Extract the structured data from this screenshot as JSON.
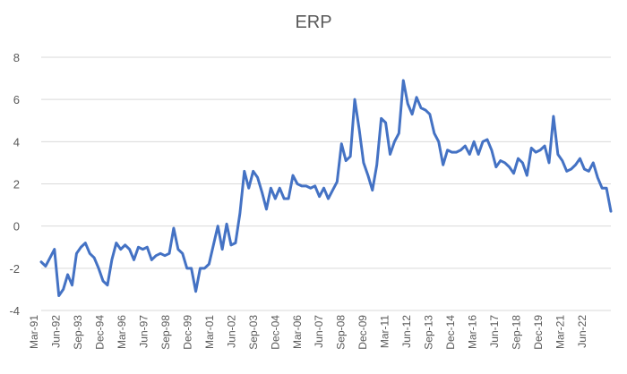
{
  "chart_data": {
    "type": "line",
    "title": "ERP",
    "xlabel": "",
    "ylabel": "",
    "ylim": [
      -4,
      8
    ],
    "yticks": [
      -4,
      -2,
      0,
      2,
      4,
      6,
      8
    ],
    "grid": true,
    "legend": "none",
    "line_color": "#4472C4",
    "grid_color": "#D9D9D9",
    "x_tick_labels": [
      "Mar-91",
      "Jun-92",
      "Sep-93",
      "Dec-94",
      "Mar-96",
      "Jun-97",
      "Sep-98",
      "Dec-99",
      "Mar-01",
      "Jun-02",
      "Sep-03",
      "Dec-04",
      "Mar-06",
      "Jun-07",
      "Sep-08",
      "Dec-09",
      "Mar-11",
      "Jun-12",
      "Sep-13",
      "Dec-14",
      "Mar-16",
      "Jun-17",
      "Sep-18",
      "Dec-19",
      "Mar-21",
      "Jun-22"
    ],
    "x_start": "Mar-91",
    "x_end": "Dec-22",
    "series": [
      {
        "values": [
          -1.7,
          -1.9,
          -1.5,
          -1.1,
          -3.3,
          -3.0,
          -2.3,
          -2.8,
          -1.3,
          -1.0,
          -0.8,
          -1.3,
          -1.5,
          -2.0,
          -2.6,
          -2.8,
          -1.6,
          -0.8,
          -1.1,
          -0.9,
          -1.1,
          -1.6,
          -1.0,
          -1.1,
          -1.0,
          -1.6,
          -1.4,
          -1.3,
          -1.4,
          -1.3,
          -0.1,
          -1.1,
          -1.3,
          -2.0,
          -2.0,
          -3.1,
          -2.0,
          -2.0,
          -1.8,
          -0.9,
          0.0,
          -1.1,
          0.1,
          -0.9,
          -0.8,
          0.6,
          2.6,
          1.8,
          2.6,
          2.3,
          1.6,
          0.8,
          1.8,
          1.3,
          1.8,
          1.3,
          1.3,
          2.4,
          2.0,
          1.9,
          1.9,
          1.8,
          1.9,
          1.4,
          1.8,
          1.3,
          1.7,
          2.1,
          3.9,
          3.1,
          3.3,
          6.0,
          4.6,
          3.0,
          2.4,
          1.7,
          2.9,
          5.1,
          4.9,
          3.4,
          4.0,
          4.4,
          6.9,
          5.8,
          5.3,
          6.1,
          5.6,
          5.5,
          5.3,
          4.4,
          4.0,
          2.9,
          3.6,
          3.5,
          3.5,
          3.6,
          3.8,
          3.4,
          4.0,
          3.4,
          4.0,
          4.1,
          3.6,
          2.8,
          3.1,
          3.0,
          2.8,
          2.5,
          3.2,
          3.0,
          2.4,
          3.7,
          3.5,
          3.6,
          3.8,
          3.0,
          5.2,
          3.4,
          3.1,
          2.6,
          2.7,
          2.9,
          3.2,
          2.7,
          2.6,
          3.0,
          2.3,
          1.8,
          1.8,
          0.7
        ]
      }
    ]
  }
}
